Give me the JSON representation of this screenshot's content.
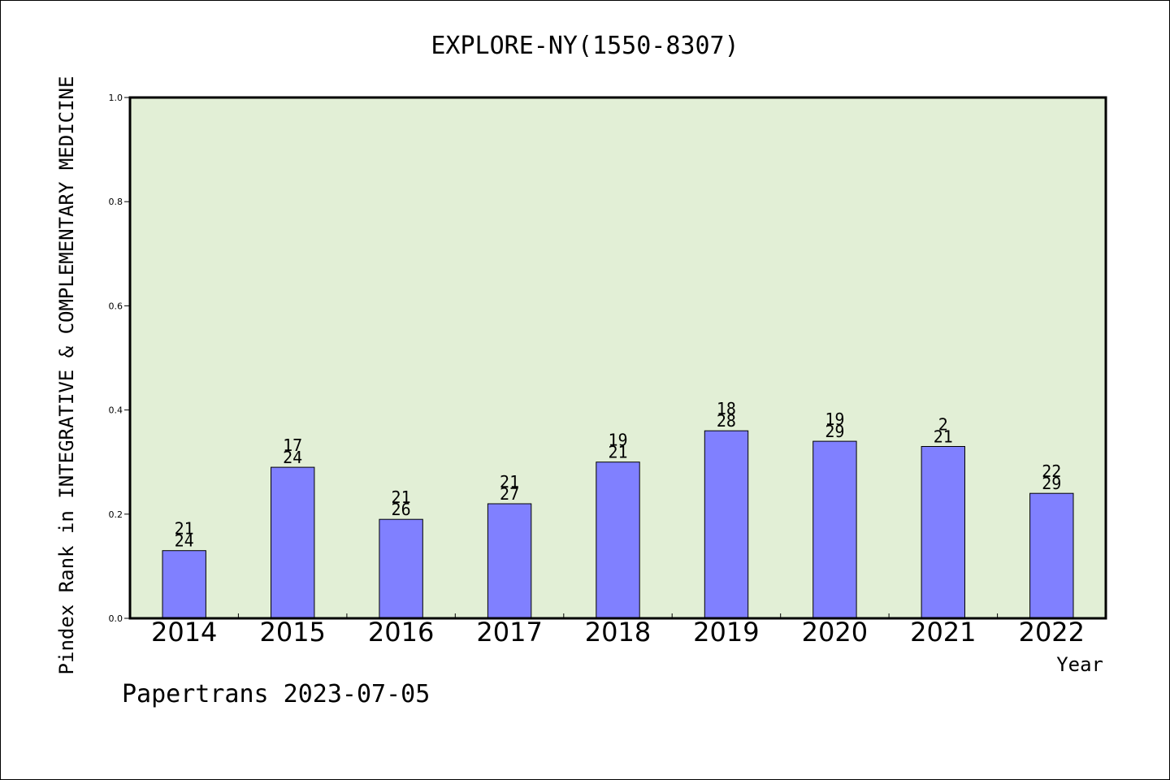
{
  "chart_data": {
    "type": "bar",
    "title": "EXPLORE-NY(1550-8307)",
    "xlabel": "Year",
    "ylabel": "Pindex Rank in INTEGRATIVE & COMPLEMENTARY MEDICINE",
    "ylim": [
      0,
      1.0
    ],
    "yticks": [
      "0.0",
      "0.2",
      "0.4",
      "0.6",
      "0.8",
      "1.0"
    ],
    "categories": [
      "2014",
      "2015",
      "2016",
      "2017",
      "2018",
      "2019",
      "2020",
      "2021",
      "2022"
    ],
    "values": [
      0.13,
      0.29,
      0.19,
      0.22,
      0.3,
      0.36,
      0.34,
      0.33,
      0.24
    ],
    "label_top": [
      "21",
      "17",
      "21",
      "21",
      "19",
      "18",
      "19",
      "2",
      "22"
    ],
    "label_bottom": [
      "24",
      "24",
      "26",
      "27",
      "21",
      "28",
      "29",
      "21",
      "29"
    ],
    "grid": false,
    "colors": {
      "bar": "#8080ff",
      "plot_bg": "#e2efd6",
      "axis": "#000000"
    }
  },
  "footer": {
    "credit": "Papertrans 2023-07-05"
  }
}
